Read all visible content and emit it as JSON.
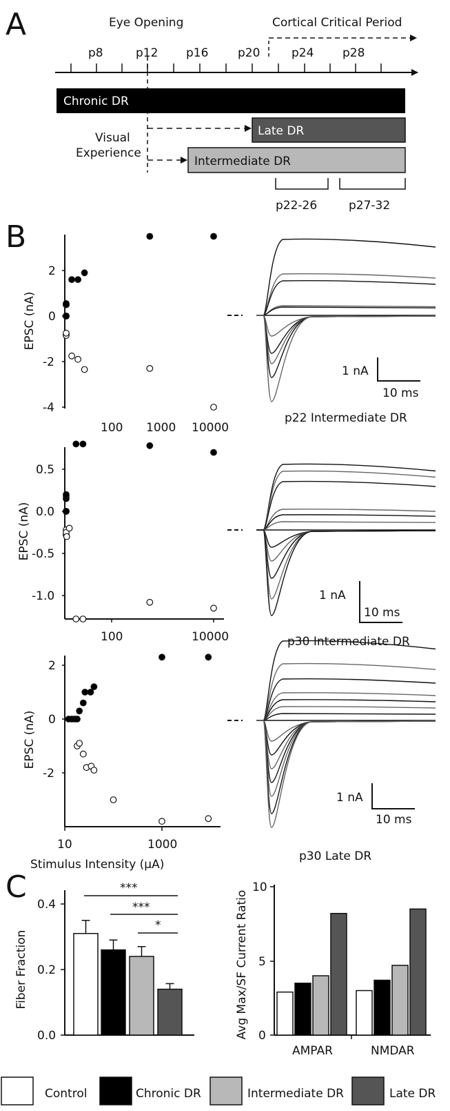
{
  "panel_a": {
    "letter": "A",
    "eye_opening": "Eye Opening",
    "critical_period": "Cortical Critical Period",
    "ticks": [
      "p8",
      "p12",
      "p16",
      "p20",
      "p24",
      "p28"
    ],
    "bars": {
      "chronic": "Chronic DR",
      "late": "Late DR",
      "intermediate": "Intermediate DR"
    },
    "visual_experience": [
      "Visual",
      "Experience"
    ],
    "ranges": [
      "p22-26",
      "p27-32"
    ]
  },
  "panel_b": {
    "letter": "B",
    "ylabel": "EPSC (nA)",
    "xlabel": "Stimulus Intensity (μA)",
    "plots": [
      {
        "yticks": [
          "2",
          "0",
          "-2",
          "-4"
        ],
        "xticks": [
          "100",
          "1000",
          "10000"
        ],
        "scale_y": "1 nA",
        "scale_x": "10 ms",
        "caption": "p22 Intermediate DR"
      },
      {
        "yticks": [
          "0.5",
          "0.0",
          "-0.5",
          "-1.0"
        ],
        "xticks": [
          "100",
          "10000"
        ],
        "scale_y": "1 nA",
        "scale_x": "10 ms",
        "caption": "p30 Intermediate DR"
      },
      {
        "yticks": [
          "2",
          "0",
          "-2"
        ],
        "xticks": [
          "10",
          "1000"
        ],
        "scale_y": "1 nA",
        "scale_x": "10 ms",
        "caption": "p30 Late DR"
      }
    ]
  },
  "panel_c": {
    "letter": "C",
    "left_ylabel": "Fiber Fraction",
    "left_yticks": [
      "0.4",
      "0.2",
      "0.0"
    ],
    "right_ylabel": "Avg Max/SF Current Ratio",
    "right_yticks": [
      "10",
      "5",
      "0"
    ],
    "significance": [
      "***",
      "***",
      "*"
    ],
    "legend": [
      "Control",
      "Chronic DR",
      "Intermediate DR",
      "Late DR"
    ]
  },
  "colors": {
    "control": "#ffffff",
    "chronic": "#000000",
    "intermediate": "#b8b8b8",
    "late": "#555555"
  },
  "chart_data": [
    {
      "type": "scatter",
      "xlabel": "Stimulus Intensity (μA)",
      "ylabel": "EPSC (nA)",
      "log_x": true,
      "ylim": [
        -4,
        3.5
      ],
      "series": [
        {
          "marker": "filled",
          "points": [
            [
              15,
              0
            ],
            [
              18,
              0
            ],
            [
              21,
              0
            ],
            [
              24,
              0
            ],
            [
              27,
              0
            ],
            [
              30,
              0.5
            ],
            [
              33,
              0.5
            ],
            [
              36,
              0.5
            ],
            [
              45,
              0.55
            ],
            [
              60,
              1.6
            ],
            [
              75,
              1.6
            ],
            [
              95,
              1.9
            ],
            [
              1000,
              3.5
            ],
            [
              10000,
              3.5
            ]
          ]
        },
        {
          "marker": "open",
          "points": [
            [
              30,
              -0.8
            ],
            [
              35,
              -0.85
            ],
            [
              42,
              -0.75
            ],
            [
              60,
              -1.75
            ],
            [
              75,
              -1.9
            ],
            [
              95,
              -2.35
            ],
            [
              1000,
              -2.3
            ],
            [
              10000,
              -4
            ]
          ]
        }
      ]
    },
    {
      "type": "scatter",
      "xlabel": "Stimulus Intensity (μA)",
      "ylabel": "EPSC (nA)",
      "log_x": true,
      "ylim": [
        -1.4,
        0.85
      ],
      "series": [
        {
          "marker": "filled",
          "points": [
            [
              15,
              0
            ],
            [
              20,
              0
            ],
            [
              25,
              0
            ],
            [
              30,
              0
            ],
            [
              35,
              0.15
            ],
            [
              40,
              0.18
            ],
            [
              48,
              0.2
            ],
            [
              70,
              0.8
            ],
            [
              90,
              0.8
            ],
            [
              1000,
              0.78
            ],
            [
              10000,
              0.7
            ]
          ]
        },
        {
          "marker": "open",
          "points": [
            [
              35,
              -0.22
            ],
            [
              40,
              -0.28
            ],
            [
              45,
              -0.25
            ],
            [
              50,
              -0.3
            ],
            [
              55,
              -0.2
            ],
            [
              70,
              -1.4
            ],
            [
              90,
              -1.38
            ],
            [
              1000,
              -1.08
            ],
            [
              10000,
              -1.15
            ]
          ]
        }
      ]
    },
    {
      "type": "scatter",
      "xlabel": "Stimulus Intensity (μA)",
      "ylabel": "EPSC (nA)",
      "log_x": true,
      "ylim": [
        -3.8,
        2.3
      ],
      "series": [
        {
          "marker": "filled",
          "points": [
            [
              12,
              0
            ],
            [
              14,
              0
            ],
            [
              16,
              0
            ],
            [
              18,
              0
            ],
            [
              20,
              0.3
            ],
            [
              24,
              0.6
            ],
            [
              26,
              1.0
            ],
            [
              34,
              1.0
            ],
            [
              40,
              1.2
            ],
            [
              1000,
              2.3
            ],
            [
              9000,
              2.3
            ]
          ]
        },
        {
          "marker": "open",
          "points": [
            [
              18,
              -1.0
            ],
            [
              20,
              -0.9
            ],
            [
              24,
              -1.3
            ],
            [
              28,
              -1.8
            ],
            [
              35,
              -1.75
            ],
            [
              40,
              -1.9
            ],
            [
              100,
              -3.0
            ],
            [
              1000,
              -3.8
            ],
            [
              9000,
              -3.7
            ]
          ]
        }
      ]
    },
    {
      "type": "bar",
      "ylabel": "Fiber Fraction",
      "ylim": [
        0,
        0.45
      ],
      "categories": [
        "Control",
        "Chronic DR",
        "Intermediate DR",
        "Late DR"
      ],
      "values": [
        0.31,
        0.26,
        0.24,
        0.14
      ],
      "errors": [
        0.04,
        0.03,
        0.03,
        0.017
      ]
    },
    {
      "type": "bar",
      "ylabel": "Avg Max/SF Current Ratio",
      "ylim": [
        0,
        10
      ],
      "categories": [
        "AMPAR",
        "NMDAR"
      ],
      "series": [
        {
          "name": "Control",
          "values": [
            2.9,
            3.0
          ]
        },
        {
          "name": "Chronic DR",
          "values": [
            3.5,
            3.7
          ]
        },
        {
          "name": "Intermediate DR",
          "values": [
            4.0,
            4.7
          ]
        },
        {
          "name": "Late DR",
          "values": [
            8.2,
            8.5
          ]
        }
      ]
    }
  ]
}
